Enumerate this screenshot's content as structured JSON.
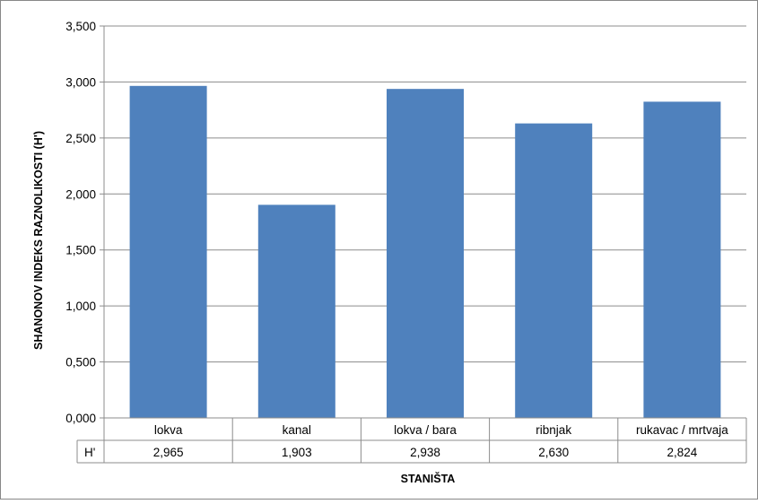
{
  "chart_data": {
    "type": "bar",
    "categories": [
      "lokva",
      "kanal",
      "lokva / bara",
      "ribnjak",
      "rukavac / mrtvaja"
    ],
    "series": [
      {
        "name": "H'",
        "values": [
          2.965,
          1.903,
          2.938,
          2.63,
          2.824
        ],
        "value_labels": [
          "2,965",
          "1,903",
          "2,938",
          "2,630",
          "2,824"
        ],
        "color": "#4f81bd"
      }
    ],
    "ylabel": "SHANONOV INDEKS RAZNOLIKOSTI (H')",
    "xlabel": "STANIŠTA",
    "ylim": [
      0,
      3.5
    ],
    "yticks": [
      0,
      0.5,
      1.0,
      1.5,
      2.0,
      2.5,
      3.0,
      3.5
    ],
    "ytick_labels": [
      "0,000",
      "0,500",
      "1,000",
      "1,500",
      "2,000",
      "2,500",
      "3,000",
      "3,500"
    ],
    "grid": true,
    "data_table": true
  }
}
